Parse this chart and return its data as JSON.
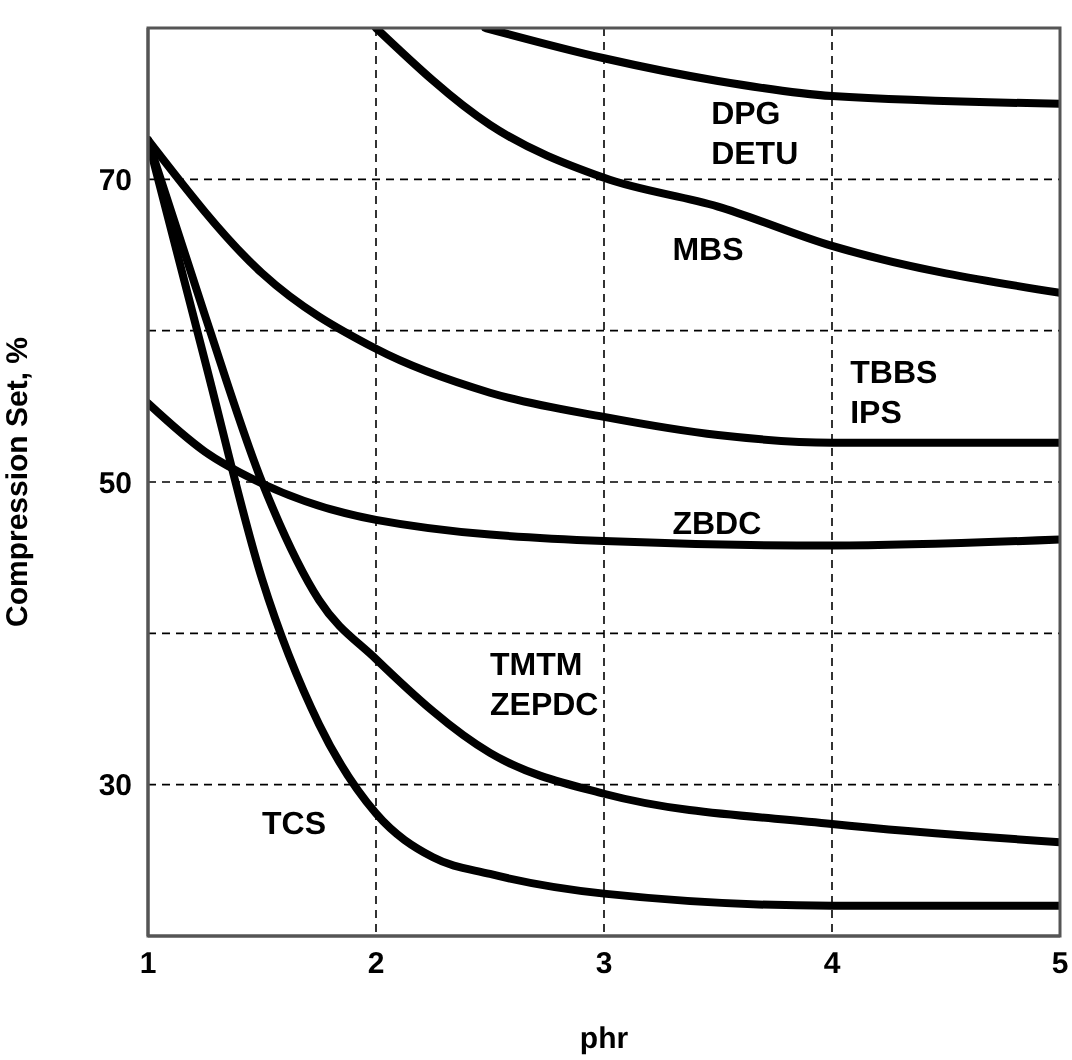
{
  "chart_data": {
    "type": "line",
    "xlabel": "phr",
    "ylabel": "Compression Set, %",
    "xlim": [
      1,
      5
    ],
    "xticks": [
      1,
      2,
      3,
      4,
      5
    ],
    "ylim": [
      20,
      80
    ],
    "yticks": [
      {
        "value": 30,
        "label": "30"
      },
      {
        "value": 40,
        "label": null
      },
      {
        "value": 50,
        "label": "50"
      },
      {
        "value": 60,
        "label": null
      },
      {
        "value": 70,
        "label": "70"
      }
    ],
    "grid": true,
    "marker": "none",
    "line_style": "solid",
    "series": [
      {
        "name": "DPG\nDETU",
        "color": "#000000",
        "x": [
          2.48,
          3,
          3.5,
          4,
          5
        ],
        "values": [
          80,
          78,
          76.5,
          75.5,
          75
        ]
      },
      {
        "name": "MBS",
        "color": "#000000",
        "x": [
          2,
          2.5,
          3,
          3.5,
          4,
          5
        ],
        "values": [
          80,
          73.6,
          70.1,
          68.2,
          65.6,
          62.5
        ]
      },
      {
        "name": "TBBS\nIPS",
        "color": "#000000",
        "x": [
          1,
          1.5,
          2,
          2.5,
          3,
          3.5,
          4,
          5
        ],
        "values": [
          72.6,
          63.8,
          58.8,
          55.9,
          54.3,
          53.1,
          52.6,
          52.6
        ]
      },
      {
        "name": "ZBDC",
        "color": "#000000",
        "x": [
          1,
          1.25,
          1.5,
          2,
          3,
          4,
          5
        ],
        "values": [
          55.2,
          52,
          49.9,
          47.5,
          46.1,
          45.8,
          46.2
        ]
      },
      {
        "name": "TMTM\nZEPDC",
        "color": "#000000",
        "x": [
          1,
          1.25,
          1.5,
          1.75,
          2,
          2.5,
          3,
          4,
          5
        ],
        "values": [
          72.6,
          61,
          50,
          42.2,
          38.3,
          32.1,
          29.4,
          27.4,
          26.2
        ]
      },
      {
        "name": "TCS",
        "color": "#000000",
        "x": [
          1,
          1.25,
          1.5,
          1.75,
          2,
          2.25,
          2.5,
          3,
          4,
          5
        ],
        "values": [
          72.6,
          58,
          43.6,
          34,
          28.1,
          25.2,
          24.1,
          22.8,
          22,
          22
        ]
      }
    ]
  }
}
